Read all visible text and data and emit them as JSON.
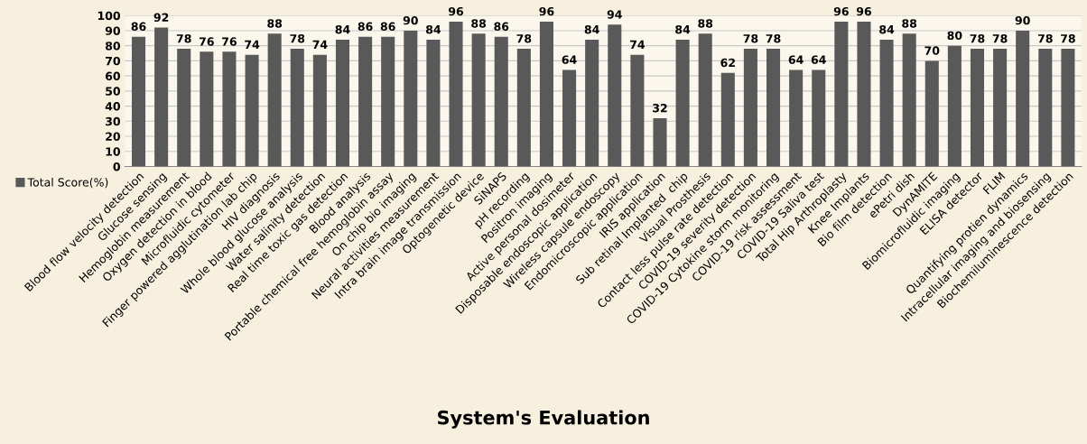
{
  "chart_data": {
    "type": "bar",
    "title": "System's Evaluation",
    "categories": [
      "Blood flow velocity detection",
      "Glucose sensing",
      "Hemoglobin measurement",
      "Oxygen detection in blood",
      "Microfluidic cytometer",
      "Finger powered agglutination lab chip",
      "HIV diagnosis",
      "Whole blood glucose analysis",
      "Water salinity detection",
      "Real time toxic gas detection",
      "Blood analysis",
      "Portable chemical free hemoglobin assay",
      "On chip bio imaging",
      "Neural activities measurement",
      "Intra brain image transmission",
      "Optogenetic device",
      "SiNAPS",
      "pH recording",
      "Positron imaging",
      "Active personal dosimeter",
      "Disposable endoscopic application",
      "Wireless capsule endoscopy",
      "Endomicroscopic application",
      "IRIS application",
      "Sub retinal Implanted  chip",
      "Visual Prosthesis",
      "Contact less pulse rate detection",
      "COVID-19 severity detection",
      "COVID-19 Cytokine storm monitoring",
      "COVID-19 risk assessment",
      "COVID-19 Saliva test",
      "Total Hip Arthroplasty",
      "Knee Implants",
      "Bio film detection",
      "ePetri dish",
      "DynAMITE",
      "Biomicrofluidic imaging",
      "ELISA detector",
      "FLIM",
      "Quantifying protien dynamics",
      "Intracellular imaging and biosensing",
      "Biochemiluminescence detection"
    ],
    "series": [
      {
        "name": "Total Score(%)",
        "color": "#595959",
        "values": [
          86,
          92,
          78,
          76,
          76,
          74,
          88,
          78,
          74,
          84,
          86,
          86,
          90,
          84,
          96,
          88,
          86,
          78,
          96,
          64,
          84,
          94,
          74,
          32,
          84,
          88,
          62,
          78,
          78,
          64,
          64,
          96,
          96,
          84,
          88,
          70,
          80,
          78,
          78,
          90,
          78,
          78
        ]
      }
    ],
    "ylim": [
      0,
      100
    ],
    "yticks": [
      0,
      10,
      20,
      30,
      40,
      50,
      60,
      70,
      80,
      90,
      100
    ],
    "grid": "y",
    "legend": "bottom left",
    "data_labels": true
  }
}
